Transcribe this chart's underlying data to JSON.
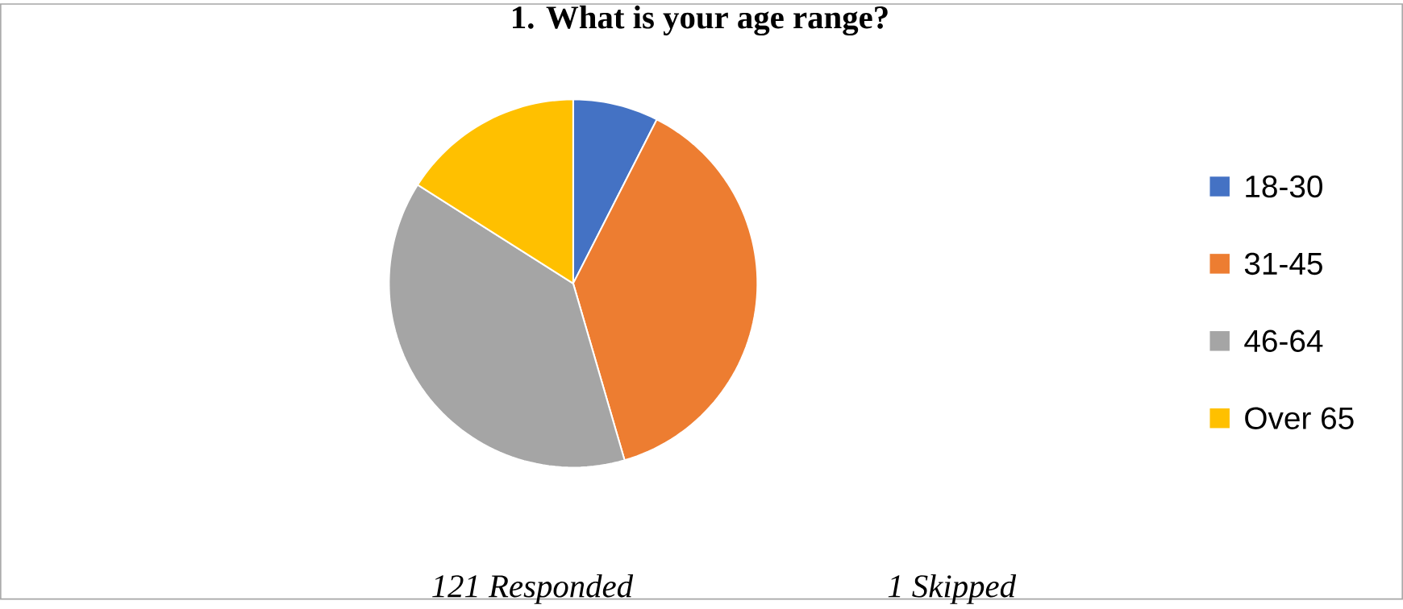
{
  "chart_data": {
    "type": "pie",
    "title": "1. What is your age range?",
    "categories": [
      "18-30",
      "31-45",
      "46-64",
      "Over 65"
    ],
    "values": [
      7.5,
      38,
      38.5,
      16
    ],
    "colors": [
      "#4472c4",
      "#ed7d31",
      "#a5a5a5",
      "#ffc000"
    ],
    "legend": "right",
    "annotations": [
      "121 Responded",
      "1 Skipped"
    ]
  }
}
